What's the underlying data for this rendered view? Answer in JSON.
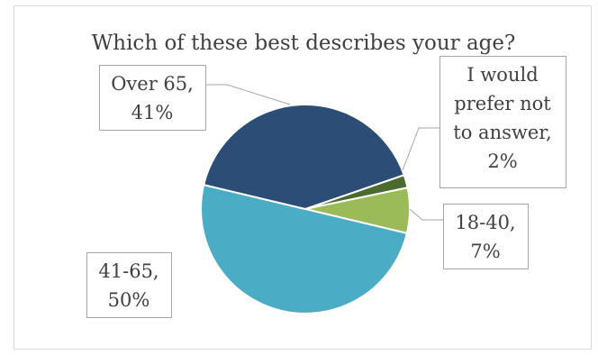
{
  "chart_data": {
    "type": "pie",
    "title": "Which of these best describes your age?",
    "categories": [
      "I would prefer not to answer",
      "18-40",
      "41-65",
      "Over 65"
    ],
    "values": [
      2,
      7,
      50,
      41
    ],
    "colors": [
      "#4b6b2e",
      "#9bbb59",
      "#4bacc6",
      "#2c4d75"
    ],
    "labels": [
      [
        "I would",
        "prefer not",
        "to answer,",
        "2%"
      ],
      [
        "18-40,",
        "7%"
      ],
      [
        "41-65,",
        "50%"
      ],
      [
        "Over 65,",
        "41%"
      ]
    ],
    "legend": "none"
  }
}
